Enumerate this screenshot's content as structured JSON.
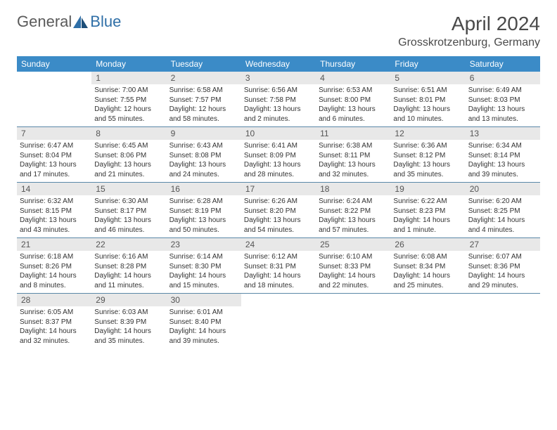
{
  "logo": {
    "general": "General",
    "blue": "Blue"
  },
  "title": "April 2024",
  "location": "Grosskrotzenburg, Germany",
  "colors": {
    "header_bar": "#3b8bc7",
    "daynum_bg": "#e8e8e8",
    "week_border": "#5a88a8",
    "page_bg": "#ffffff",
    "text": "#333333",
    "logo_general": "#5a5a5a",
    "logo_blue": "#2f6fa7"
  },
  "weekdays": [
    "Sunday",
    "Monday",
    "Tuesday",
    "Wednesday",
    "Thursday",
    "Friday",
    "Saturday"
  ],
  "weeks": [
    [
      {
        "num": "",
        "sunrise": "",
        "sunset": "",
        "daylight1": "",
        "daylight2": "",
        "empty": true
      },
      {
        "num": "1",
        "sunrise": "Sunrise: 7:00 AM",
        "sunset": "Sunset: 7:55 PM",
        "daylight1": "Daylight: 12 hours",
        "daylight2": "and 55 minutes."
      },
      {
        "num": "2",
        "sunrise": "Sunrise: 6:58 AM",
        "sunset": "Sunset: 7:57 PM",
        "daylight1": "Daylight: 12 hours",
        "daylight2": "and 58 minutes."
      },
      {
        "num": "3",
        "sunrise": "Sunrise: 6:56 AM",
        "sunset": "Sunset: 7:58 PM",
        "daylight1": "Daylight: 13 hours",
        "daylight2": "and 2 minutes."
      },
      {
        "num": "4",
        "sunrise": "Sunrise: 6:53 AM",
        "sunset": "Sunset: 8:00 PM",
        "daylight1": "Daylight: 13 hours",
        "daylight2": "and 6 minutes."
      },
      {
        "num": "5",
        "sunrise": "Sunrise: 6:51 AM",
        "sunset": "Sunset: 8:01 PM",
        "daylight1": "Daylight: 13 hours",
        "daylight2": "and 10 minutes."
      },
      {
        "num": "6",
        "sunrise": "Sunrise: 6:49 AM",
        "sunset": "Sunset: 8:03 PM",
        "daylight1": "Daylight: 13 hours",
        "daylight2": "and 13 minutes."
      }
    ],
    [
      {
        "num": "7",
        "sunrise": "Sunrise: 6:47 AM",
        "sunset": "Sunset: 8:04 PM",
        "daylight1": "Daylight: 13 hours",
        "daylight2": "and 17 minutes."
      },
      {
        "num": "8",
        "sunrise": "Sunrise: 6:45 AM",
        "sunset": "Sunset: 8:06 PM",
        "daylight1": "Daylight: 13 hours",
        "daylight2": "and 21 minutes."
      },
      {
        "num": "9",
        "sunrise": "Sunrise: 6:43 AM",
        "sunset": "Sunset: 8:08 PM",
        "daylight1": "Daylight: 13 hours",
        "daylight2": "and 24 minutes."
      },
      {
        "num": "10",
        "sunrise": "Sunrise: 6:41 AM",
        "sunset": "Sunset: 8:09 PM",
        "daylight1": "Daylight: 13 hours",
        "daylight2": "and 28 minutes."
      },
      {
        "num": "11",
        "sunrise": "Sunrise: 6:38 AM",
        "sunset": "Sunset: 8:11 PM",
        "daylight1": "Daylight: 13 hours",
        "daylight2": "and 32 minutes."
      },
      {
        "num": "12",
        "sunrise": "Sunrise: 6:36 AM",
        "sunset": "Sunset: 8:12 PM",
        "daylight1": "Daylight: 13 hours",
        "daylight2": "and 35 minutes."
      },
      {
        "num": "13",
        "sunrise": "Sunrise: 6:34 AM",
        "sunset": "Sunset: 8:14 PM",
        "daylight1": "Daylight: 13 hours",
        "daylight2": "and 39 minutes."
      }
    ],
    [
      {
        "num": "14",
        "sunrise": "Sunrise: 6:32 AM",
        "sunset": "Sunset: 8:15 PM",
        "daylight1": "Daylight: 13 hours",
        "daylight2": "and 43 minutes."
      },
      {
        "num": "15",
        "sunrise": "Sunrise: 6:30 AM",
        "sunset": "Sunset: 8:17 PM",
        "daylight1": "Daylight: 13 hours",
        "daylight2": "and 46 minutes."
      },
      {
        "num": "16",
        "sunrise": "Sunrise: 6:28 AM",
        "sunset": "Sunset: 8:19 PM",
        "daylight1": "Daylight: 13 hours",
        "daylight2": "and 50 minutes."
      },
      {
        "num": "17",
        "sunrise": "Sunrise: 6:26 AM",
        "sunset": "Sunset: 8:20 PM",
        "daylight1": "Daylight: 13 hours",
        "daylight2": "and 54 minutes."
      },
      {
        "num": "18",
        "sunrise": "Sunrise: 6:24 AM",
        "sunset": "Sunset: 8:22 PM",
        "daylight1": "Daylight: 13 hours",
        "daylight2": "and 57 minutes."
      },
      {
        "num": "19",
        "sunrise": "Sunrise: 6:22 AM",
        "sunset": "Sunset: 8:23 PM",
        "daylight1": "Daylight: 14 hours",
        "daylight2": "and 1 minute."
      },
      {
        "num": "20",
        "sunrise": "Sunrise: 6:20 AM",
        "sunset": "Sunset: 8:25 PM",
        "daylight1": "Daylight: 14 hours",
        "daylight2": "and 4 minutes."
      }
    ],
    [
      {
        "num": "21",
        "sunrise": "Sunrise: 6:18 AM",
        "sunset": "Sunset: 8:26 PM",
        "daylight1": "Daylight: 14 hours",
        "daylight2": "and 8 minutes."
      },
      {
        "num": "22",
        "sunrise": "Sunrise: 6:16 AM",
        "sunset": "Sunset: 8:28 PM",
        "daylight1": "Daylight: 14 hours",
        "daylight2": "and 11 minutes."
      },
      {
        "num": "23",
        "sunrise": "Sunrise: 6:14 AM",
        "sunset": "Sunset: 8:30 PM",
        "daylight1": "Daylight: 14 hours",
        "daylight2": "and 15 minutes."
      },
      {
        "num": "24",
        "sunrise": "Sunrise: 6:12 AM",
        "sunset": "Sunset: 8:31 PM",
        "daylight1": "Daylight: 14 hours",
        "daylight2": "and 18 minutes."
      },
      {
        "num": "25",
        "sunrise": "Sunrise: 6:10 AM",
        "sunset": "Sunset: 8:33 PM",
        "daylight1": "Daylight: 14 hours",
        "daylight2": "and 22 minutes."
      },
      {
        "num": "26",
        "sunrise": "Sunrise: 6:08 AM",
        "sunset": "Sunset: 8:34 PM",
        "daylight1": "Daylight: 14 hours",
        "daylight2": "and 25 minutes."
      },
      {
        "num": "27",
        "sunrise": "Sunrise: 6:07 AM",
        "sunset": "Sunset: 8:36 PM",
        "daylight1": "Daylight: 14 hours",
        "daylight2": "and 29 minutes."
      }
    ],
    [
      {
        "num": "28",
        "sunrise": "Sunrise: 6:05 AM",
        "sunset": "Sunset: 8:37 PM",
        "daylight1": "Daylight: 14 hours",
        "daylight2": "and 32 minutes."
      },
      {
        "num": "29",
        "sunrise": "Sunrise: 6:03 AM",
        "sunset": "Sunset: 8:39 PM",
        "daylight1": "Daylight: 14 hours",
        "daylight2": "and 35 minutes."
      },
      {
        "num": "30",
        "sunrise": "Sunrise: 6:01 AM",
        "sunset": "Sunset: 8:40 PM",
        "daylight1": "Daylight: 14 hours",
        "daylight2": "and 39 minutes."
      },
      {
        "num": "",
        "sunrise": "",
        "sunset": "",
        "daylight1": "",
        "daylight2": "",
        "empty": true
      },
      {
        "num": "",
        "sunrise": "",
        "sunset": "",
        "daylight1": "",
        "daylight2": "",
        "empty": true
      },
      {
        "num": "",
        "sunrise": "",
        "sunset": "",
        "daylight1": "",
        "daylight2": "",
        "empty": true
      },
      {
        "num": "",
        "sunrise": "",
        "sunset": "",
        "daylight1": "",
        "daylight2": "",
        "empty": true
      }
    ]
  ]
}
